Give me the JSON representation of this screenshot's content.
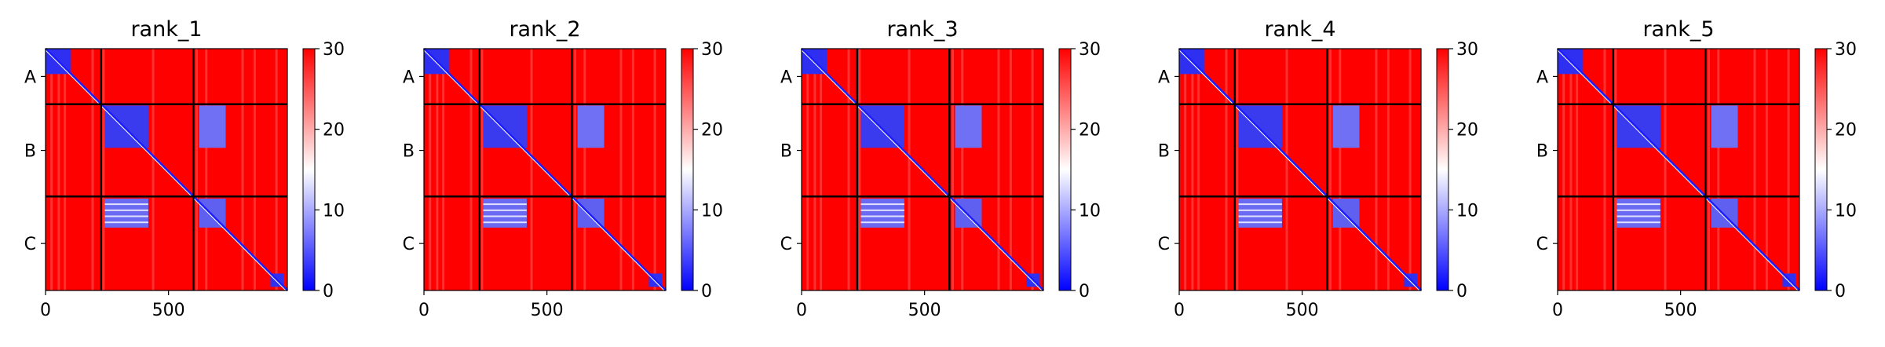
{
  "chart_data": [
    {
      "type": "heatmap",
      "title": "rank_1"
    },
    {
      "type": "heatmap",
      "title": "rank_2"
    },
    {
      "type": "heatmap",
      "title": "rank_3"
    },
    {
      "type": "heatmap",
      "title": "rank_4"
    },
    {
      "type": "heatmap",
      "title": "rank_5"
    }
  ],
  "shared": {
    "colormap": "bwr",
    "colors": {
      "low": "#0000ff",
      "mid": "#ffffff",
      "high": "#ff0000",
      "border": "#000000"
    },
    "range": [
      0,
      30
    ],
    "n_residues": 983,
    "chain_labels": [
      "A",
      "B",
      "C"
    ],
    "chain_boundaries": [
      226,
      601
    ],
    "x_ticks": [
      0,
      500
    ],
    "x_tick_labels": [
      "0",
      "500"
    ],
    "colorbar_ticks": [
      0,
      10,
      20,
      30
    ],
    "colorbar_tick_labels": [
      "0",
      "10",
      "20",
      "30"
    ]
  }
}
